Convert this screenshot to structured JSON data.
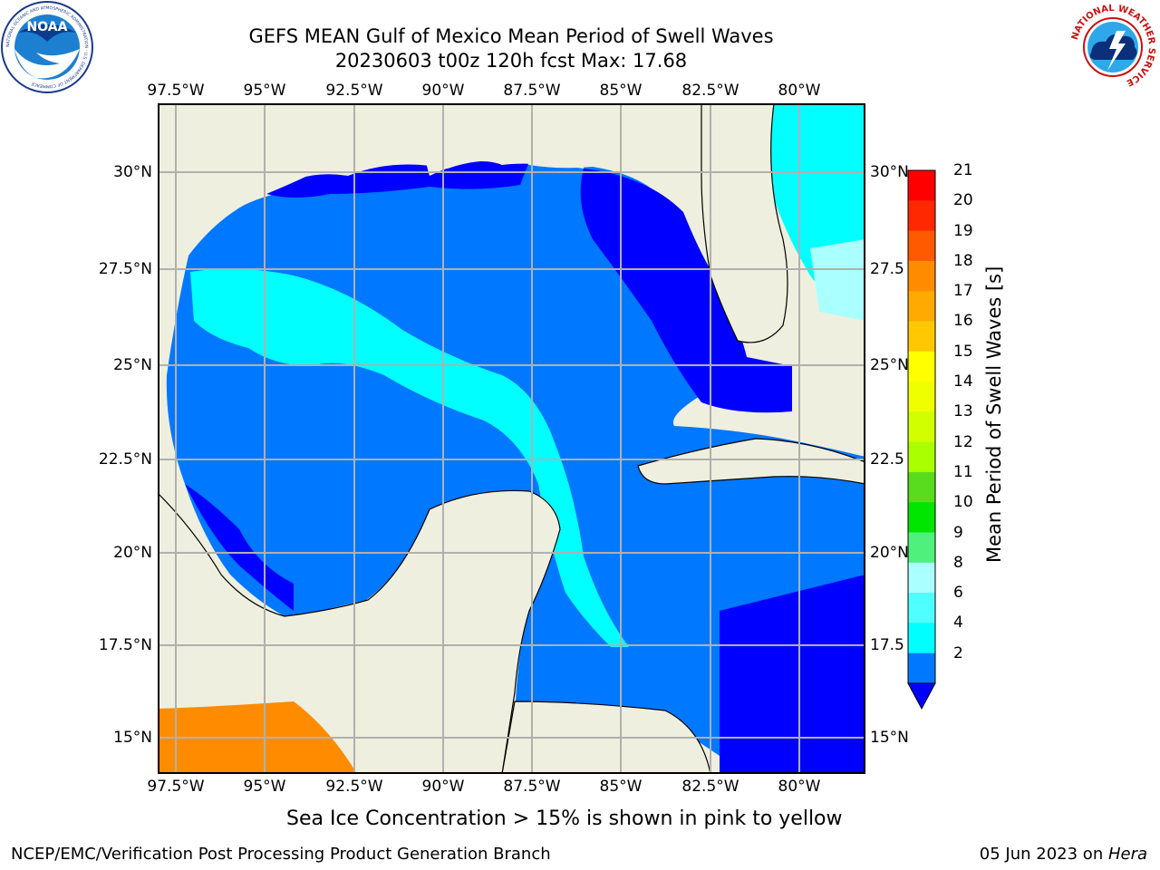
{
  "title": {
    "line1": "GEFS MEAN Gulf of Mexico Mean Period of Swell Waves",
    "line2": "20230603 t00z 120h fcst   Max: 17.68"
  },
  "map": {
    "x_ticks": [
      "97.5°W",
      "95°W",
      "92.5°W",
      "90°W",
      "87.5°W",
      "85°W",
      "82.5°W",
      "80°W"
    ],
    "y_ticks_left": [
      "30°N",
      "27.5°N",
      "25°N",
      "22.5°N",
      "20°N",
      "17.5°N",
      "15°N"
    ],
    "y_ticks_right": [
      "30°N",
      "27.5",
      "25°N",
      "22.5",
      "20°N",
      "17.5",
      "15°N"
    ],
    "lon_range": [
      -98,
      -78.25
    ],
    "lat_range": [
      14.1,
      31.8
    ],
    "land_color": "#efefdf",
    "grid": true
  },
  "colorbar": {
    "title": "Mean Period of Swell Waves [s]",
    "labels": [
      "21",
      "20",
      "19",
      "18",
      "17",
      "16",
      "15",
      "14",
      "13",
      "12",
      "11",
      "10",
      "9",
      "8",
      "6",
      "4",
      "2"
    ],
    "colors": [
      "#ff0000",
      "#ff2800",
      "#ff5a00",
      "#ff8c00",
      "#ffaa00",
      "#ffc800",
      "#ffff00",
      "#f0ff00",
      "#d2ff00",
      "#aaff00",
      "#5adc1e",
      "#00e600",
      "#50f07d",
      "#aaffff",
      "#50ffff",
      "#00ffff",
      "#0078ff"
    ],
    "under_color": "#0000ff"
  },
  "caption": "Sea Ice Concentration > 15% is shown in pink to yellow",
  "footer": {
    "left": "NCEP/EMC/Verification Post Processing Product Generation Branch",
    "right_prefix": "05 Jun 2023 on ",
    "right_host": "Hera"
  },
  "logos": {
    "noaa_text": "NOAA",
    "noaa_ring": "NATIONAL OCEANIC AND ATMOSPHERIC ADMINISTRATION · U.S. DEPARTMENT OF COMMERCE",
    "nws_ring": "NATIONAL WEATHER SERVICE"
  }
}
